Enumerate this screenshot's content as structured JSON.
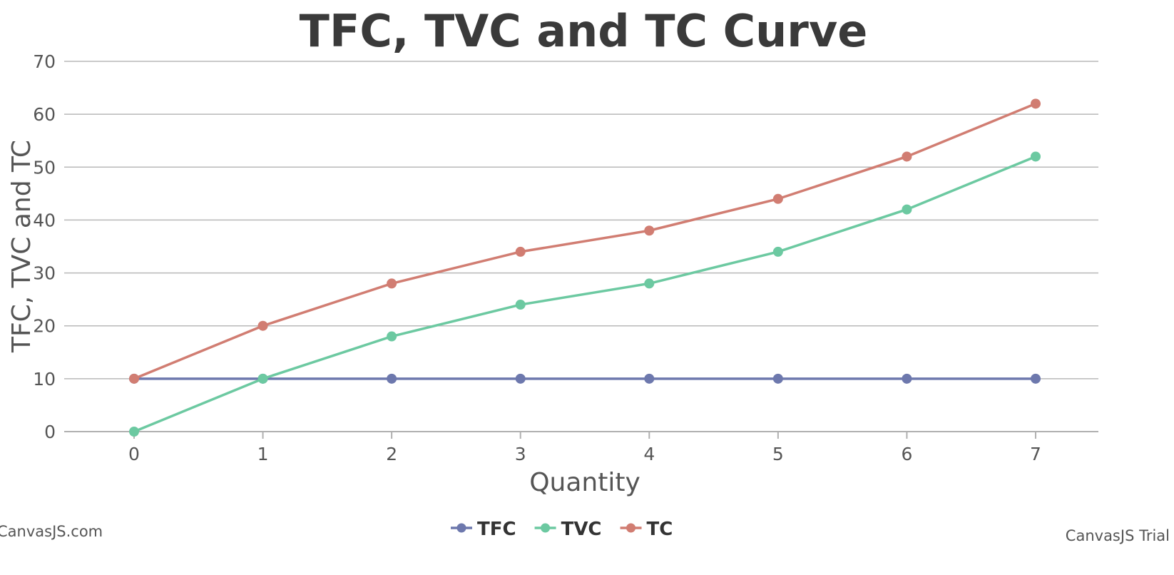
{
  "chart_data": {
    "type": "line",
    "title": "TFC, TVC and TC Curve",
    "xlabel": "Quantity",
    "ylabel": "TFC, TVC and TC",
    "x": [
      0,
      1,
      2,
      3,
      4,
      5,
      6,
      7
    ],
    "ylim": [
      0,
      70
    ],
    "yticks": [
      0,
      10,
      20,
      30,
      40,
      50,
      60,
      70
    ],
    "grid": true,
    "legend_position": "bottom-center",
    "series": [
      {
        "name": "TFC",
        "color": "#6d78ad",
        "values": [
          10,
          10,
          10,
          10,
          10,
          10,
          10,
          10
        ]
      },
      {
        "name": "TVC",
        "color": "#6cc9a1",
        "values": [
          0,
          10,
          18,
          24,
          28,
          34,
          42,
          52
        ]
      },
      {
        "name": "TC",
        "color": "#d17d72",
        "values": [
          10,
          20,
          28,
          34,
          38,
          44,
          52,
          62
        ]
      }
    ]
  },
  "credits": {
    "left": "CanvasJS.com",
    "right": "CanvasJS Trial"
  }
}
